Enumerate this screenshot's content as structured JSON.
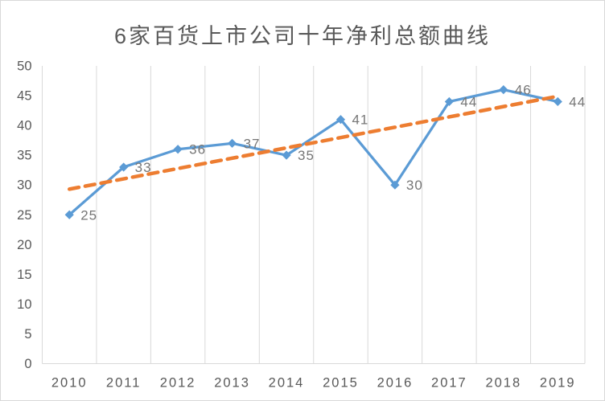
{
  "chart_data": {
    "type": "line",
    "title": "6家百货上市公司十年净利总额曲线",
    "categories": [
      "2010",
      "2011",
      "2012",
      "2013",
      "2014",
      "2015",
      "2016",
      "2017",
      "2018",
      "2019"
    ],
    "series": [
      {
        "values": [
          25,
          33,
          36,
          37,
          35,
          41,
          30,
          44,
          46,
          44
        ],
        "marker": "diamond",
        "data_labels_shown": true,
        "label_position": "right"
      }
    ],
    "trendline": {
      "type": "linear",
      "style": "dashed",
      "y_start": 29.3,
      "y_end": 44.9
    },
    "xlabel": "",
    "ylabel": "",
    "ylim": [
      0,
      50
    ],
    "y_tick_step": 5,
    "y_ticks": [
      0,
      5,
      10,
      15,
      20,
      25,
      30,
      35,
      40,
      45,
      50
    ],
    "grid": "vertical-only",
    "legend": "none"
  },
  "colors": {
    "series": "#5B9BD5",
    "trendline": "#ED7D31",
    "gridline": "#D9D9D9",
    "axis_line": "#D9D9D9",
    "axis_text": "#595959",
    "data_label_text": "#767676",
    "title_text": "#595959",
    "background": "#FFFFFF",
    "border": "#D9D9D9"
  }
}
